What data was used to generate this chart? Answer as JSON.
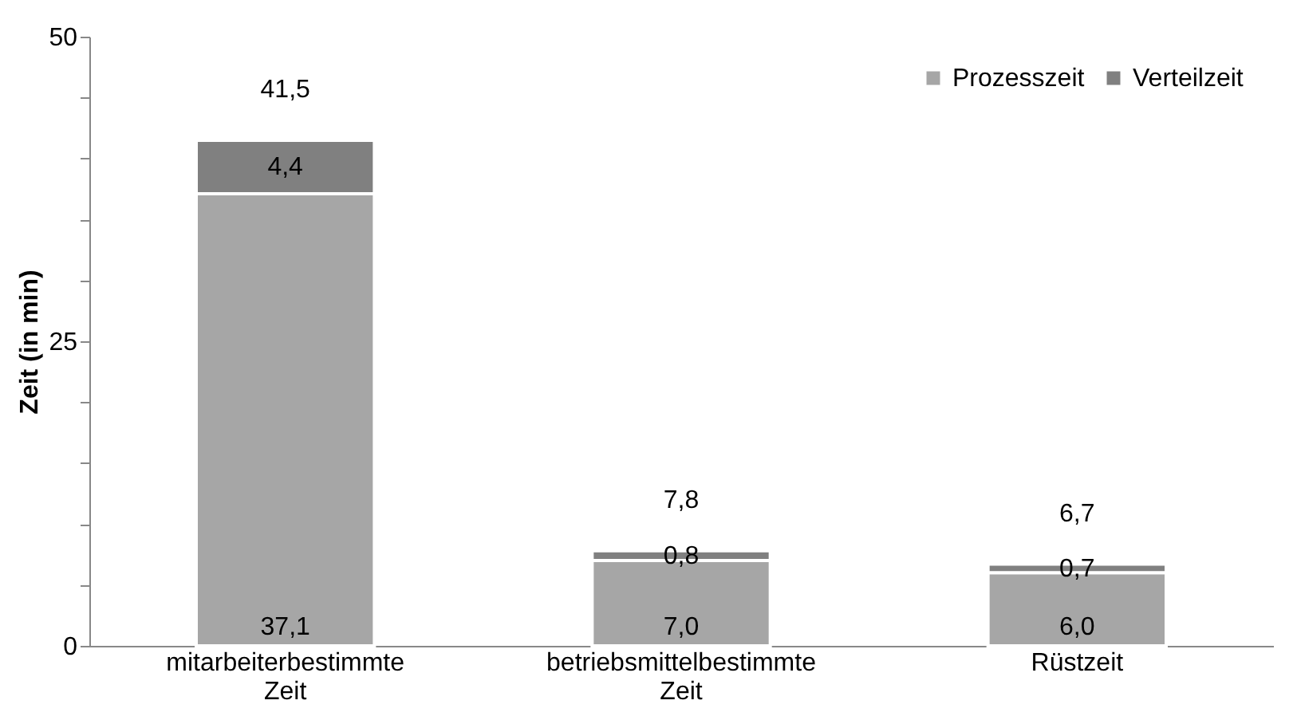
{
  "chart_data": {
    "type": "bar",
    "stacked": true,
    "ylabel": "Zeit (in min)",
    "categories": [
      "mitarbeiterbestimmte Zeit",
      "betriebsmittelbestimmte Zeit",
      "Rüstzeit"
    ],
    "series": [
      {
        "name": "Prozesszeit",
        "color": "#a6a6a6",
        "values": [
          37.1,
          7.0,
          6.0
        ],
        "value_labels": [
          "37,1",
          "7,0",
          "6,0"
        ]
      },
      {
        "name": "Verteilzeit",
        "color": "#808080",
        "values": [
          4.4,
          0.8,
          0.7
        ],
        "value_labels": [
          "4,4",
          "0,8",
          "0,7"
        ]
      }
    ],
    "totals": [
      "41,5",
      "7,8",
      "6,7"
    ],
    "ylim": [
      0,
      50
    ],
    "yticks": [
      0,
      {
        "value": 5,
        "label": null
      },
      {
        "value": 10,
        "label": null
      },
      {
        "value": 15,
        "label": null
      },
      {
        "value": 20,
        "label": null
      },
      25,
      {
        "value": 30,
        "label": null
      },
      {
        "value": 35,
        "label": null
      },
      {
        "value": 40,
        "label": null
      },
      {
        "value": 45,
        "label": null
      },
      50
    ],
    "grid": false,
    "legend": "top right"
  }
}
